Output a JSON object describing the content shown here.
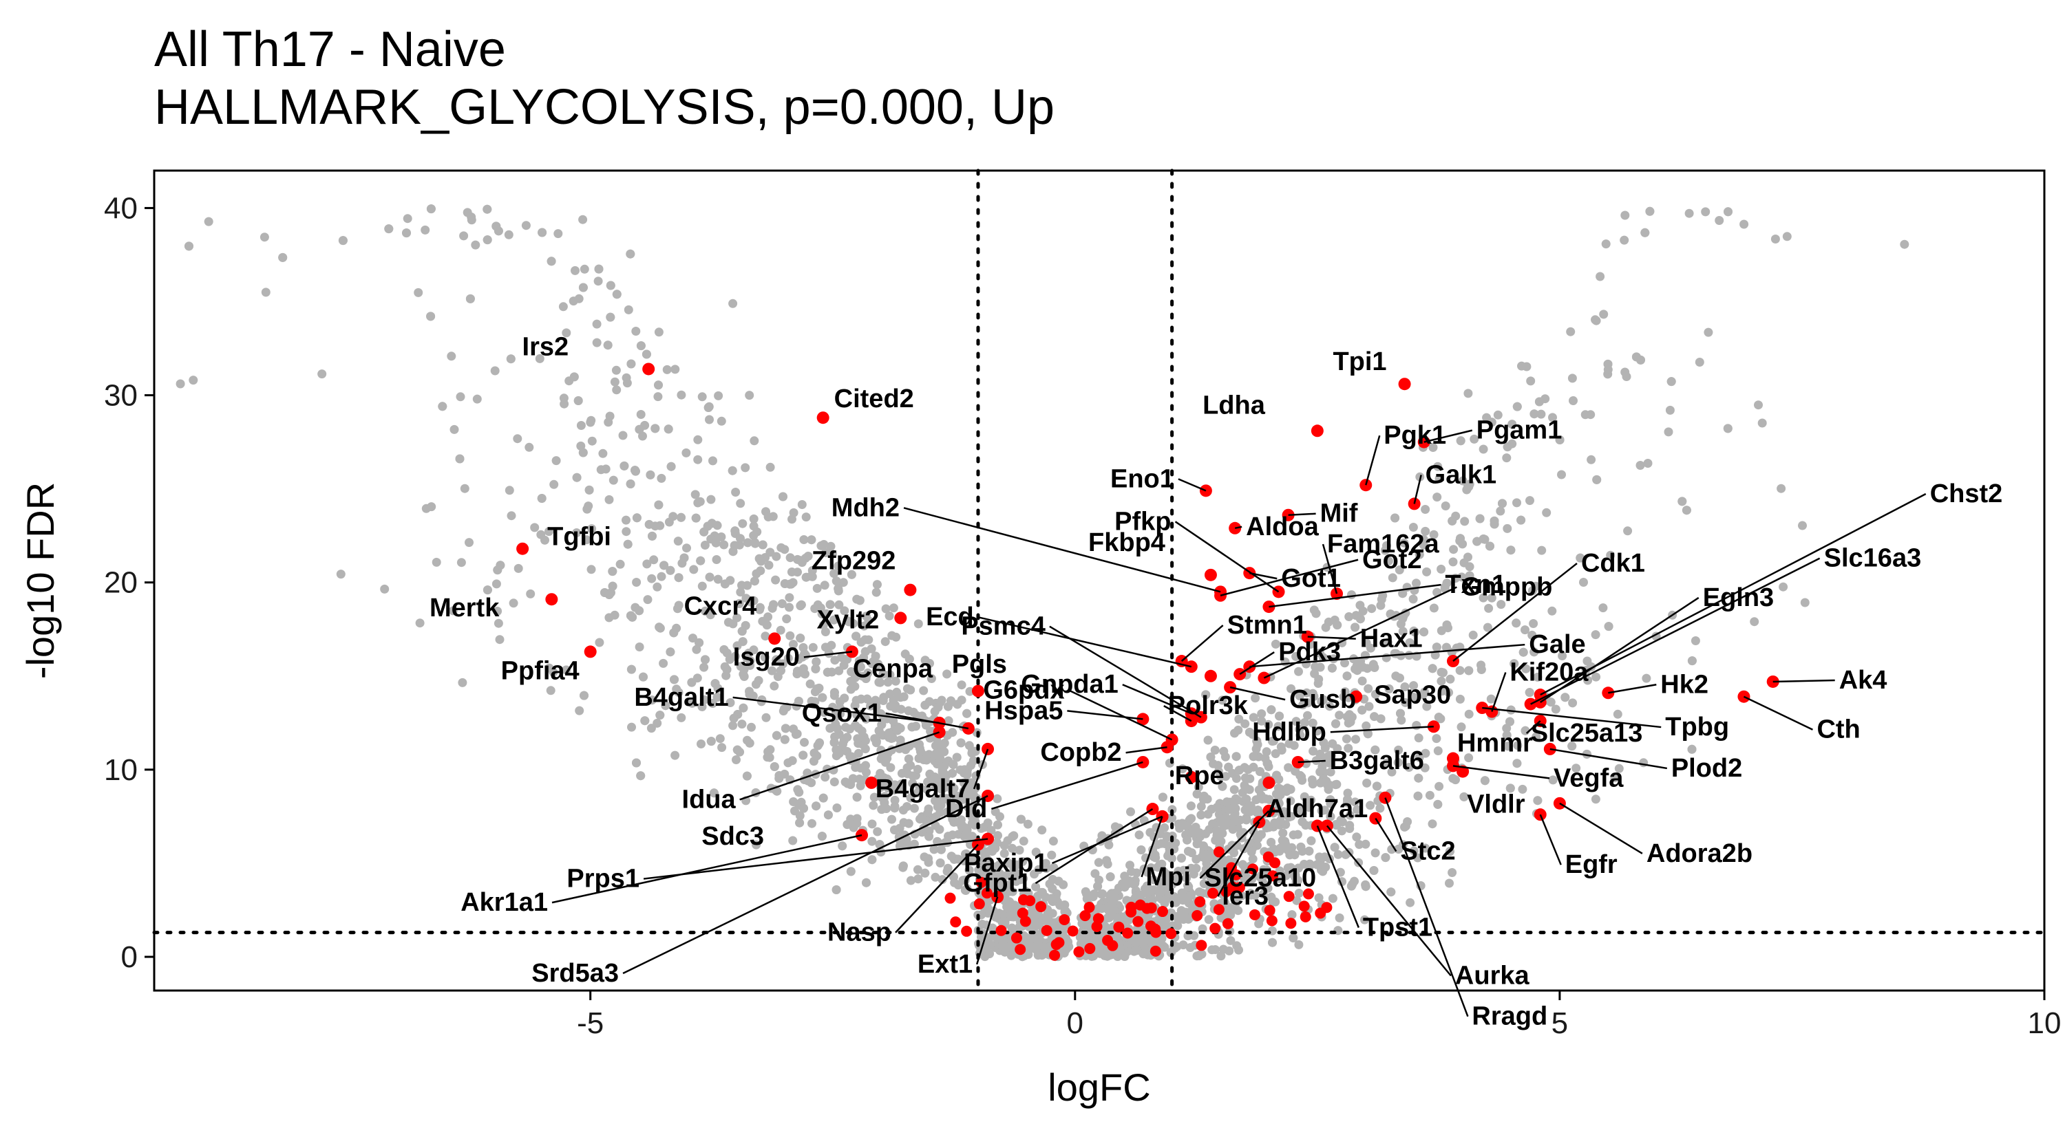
{
  "title": "All Th17 - Naive",
  "subtitle": "HALLMARK_GLYCOLYSIS, p=0.000, Up",
  "chart_data": {
    "type": "scatter",
    "xlabel": "logFC",
    "ylabel": "-log10 FDR",
    "xlim": [
      -9.5,
      10
    ],
    "ylim": [
      -1.8,
      42
    ],
    "xticks": [
      -5,
      0,
      5,
      10
    ],
    "yticks": [
      0,
      10,
      20,
      30,
      40
    ],
    "grid": false,
    "thresholds": {
      "logFC": [
        -1,
        1
      ],
      "neg_log10_fdr": 1.3
    },
    "colors": {
      "background_genes": "#b3b3b3",
      "pathway_genes": "#ff0000",
      "threshold_line": "#000000"
    },
    "background_points": {
      "note": "thousands of grey background genes forming a volcano shape",
      "shown_as": "grey cloud"
    },
    "highlighted_genes": [
      {
        "gene": "Irs2",
        "logFC": -4.4,
        "fdr": 31.4
      },
      {
        "gene": "Cited2",
        "logFC": -2.6,
        "fdr": 28.8
      },
      {
        "gene": "Tgfbi",
        "logFC": -5.7,
        "fdr": 21.8
      },
      {
        "gene": "Mertk",
        "logFC": -5.4,
        "fdr": 19.1
      },
      {
        "gene": "Ppfia4",
        "logFC": -5.0,
        "fdr": 16.3
      },
      {
        "gene": "Cxcr4",
        "logFC": -3.1,
        "fdr": 17.0
      },
      {
        "gene": "Zfp292",
        "logFC": -1.7,
        "fdr": 19.6
      },
      {
        "gene": "Xylt2",
        "logFC": -1.8,
        "fdr": 18.1
      },
      {
        "gene": "Isg20",
        "logFC": -2.3,
        "fdr": 16.3
      },
      {
        "gene": "Mdh2",
        "logFC": 1.5,
        "fdr": 19.5
      },
      {
        "gene": "Ecd",
        "logFC": 1.2,
        "fdr": 15.5
      },
      {
        "gene": "Pgls",
        "logFC": 1.4,
        "fdr": 15.0
      },
      {
        "gene": "Cenpa",
        "logFC": -1.0,
        "fdr": 14.2
      },
      {
        "gene": "Psmc4",
        "logFC": 1.3,
        "fdr": 12.8
      },
      {
        "gene": "G6pdx",
        "logFC": 1.0,
        "fdr": 11.6
      },
      {
        "gene": "Gnpda1",
        "logFC": 1.2,
        "fdr": 13.0
      },
      {
        "gene": "Pfkp",
        "logFC": 2.1,
        "fdr": 19.5
      },
      {
        "gene": "Fkbp4",
        "logFC": 1.4,
        "fdr": 20.4
      },
      {
        "gene": "Stmn1",
        "logFC": 1.1,
        "fdr": 15.8
      },
      {
        "gene": "Hspa5",
        "logFC": 0.7,
        "fdr": 12.7
      },
      {
        "gene": "Eno1",
        "logFC": 1.35,
        "fdr": 24.9
      },
      {
        "gene": "Aldoa",
        "logFC": 1.65,
        "fdr": 22.9
      },
      {
        "gene": "Ldha",
        "logFC": 2.5,
        "fdr": 28.1
      },
      {
        "gene": "Tpi1",
        "logFC": 3.4,
        "fdr": 30.6
      },
      {
        "gene": "Pgk1",
        "logFC": 3.0,
        "fdr": 25.2
      },
      {
        "gene": "Mif",
        "logFC": 2.2,
        "fdr": 23.6
      },
      {
        "gene": "Pgam1",
        "logFC": 3.6,
        "fdr": 27.5
      },
      {
        "gene": "Galk1",
        "logFC": 3.5,
        "fdr": 24.2
      },
      {
        "gene": "Got2",
        "logFC": 1.5,
        "fdr": 19.3
      },
      {
        "gene": "Got1",
        "logFC": 1.8,
        "fdr": 20.5
      },
      {
        "gene": "Txn1",
        "logFC": 2.0,
        "fdr": 18.7
      },
      {
        "gene": "Fam162a",
        "logFC": 2.7,
        "fdr": 19.4
      },
      {
        "gene": "Gale",
        "logFC": 1.8,
        "fdr": 15.5
      },
      {
        "gene": "Pdk3",
        "logFC": 1.7,
        "fdr": 15.1
      },
      {
        "gene": "Hax1",
        "logFC": 2.4,
        "fdr": 17.1
      },
      {
        "gene": "Gmppb",
        "logFC": 1.95,
        "fdr": 14.9
      },
      {
        "gene": "Gusb",
        "logFC": 1.6,
        "fdr": 14.4
      },
      {
        "gene": "Sap30",
        "logFC": 2.9,
        "fdr": 13.9
      },
      {
        "gene": "Cdk1",
        "logFC": 3.9,
        "fdr": 15.8
      },
      {
        "gene": "Kif20a",
        "logFC": 4.3,
        "fdr": 13.1
      },
      {
        "gene": "Egln3",
        "logFC": 4.8,
        "fdr": 13.6
      },
      {
        "gene": "Chst2",
        "logFC": 4.8,
        "fdr": 14.0
      },
      {
        "gene": "Slc16a3",
        "logFC": 4.7,
        "fdr": 13.5
      },
      {
        "gene": "Hk2",
        "logFC": 5.5,
        "fdr": 14.1
      },
      {
        "gene": "Ak4",
        "logFC": 7.2,
        "fdr": 14.7
      },
      {
        "gene": "Cth",
        "logFC": 6.9,
        "fdr": 13.9
      },
      {
        "gene": "Tpbg",
        "logFC": 4.2,
        "fdr": 13.3
      },
      {
        "gene": "Slc25a13",
        "logFC": 4.8,
        "fdr": 12.6
      },
      {
        "gene": "Hdlbp",
        "logFC": 3.7,
        "fdr": 12.3
      },
      {
        "gene": "Hmmr",
        "logFC": 3.9,
        "fdr": 10.6
      },
      {
        "gene": "Plod2",
        "logFC": 4.9,
        "fdr": 11.1
      },
      {
        "gene": "Vegfa",
        "logFC": 3.9,
        "fdr": 10.2
      },
      {
        "gene": "Polr3k",
        "logFC": 1.2,
        "fdr": 12.6
      },
      {
        "gene": "B3galt6",
        "logFC": 2.3,
        "fdr": 10.4
      },
      {
        "gene": "Vldlr",
        "logFC": 4.0,
        "fdr": 9.9
      },
      {
        "gene": "Adora2b",
        "logFC": 5.0,
        "fdr": 8.2
      },
      {
        "gene": "Egfr",
        "logFC": 4.8,
        "fdr": 7.6
      },
      {
        "gene": "Qsox1",
        "logFC": -1.1,
        "fdr": 12.2
      },
      {
        "gene": "B4galt1",
        "logFC": -1.4,
        "fdr": 12.5
      },
      {
        "gene": "Idua",
        "logFC": -1.4,
        "fdr": 12.0
      },
      {
        "gene": "B4galt7",
        "logFC": -0.9,
        "fdr": 11.1
      },
      {
        "gene": "Sdc3",
        "logFC": -2.1,
        "fdr": 9.3
      },
      {
        "gene": "Copb2",
        "logFC": 0.95,
        "fdr": 11.2
      },
      {
        "gene": "Dld",
        "logFC": 0.7,
        "fdr": 10.4
      },
      {
        "gene": "Rpe",
        "logFC": 1.2,
        "fdr": 9.6
      },
      {
        "gene": "Aldh7a1",
        "logFC": 2.0,
        "fdr": 9.3
      },
      {
        "gene": "Prps1",
        "logFC": -0.9,
        "fdr": 6.3
      },
      {
        "gene": "Paxip1",
        "logFC": 0.9,
        "fdr": 7.5
      },
      {
        "gene": "Slc25a10",
        "logFC": 2.0,
        "fdr": 7.8
      },
      {
        "gene": "Stc2",
        "logFC": 3.1,
        "fdr": 7.4
      },
      {
        "gene": "Aurka",
        "logFC": 2.6,
        "fdr": 7.0
      },
      {
        "gene": "Akr1a1",
        "logFC": -2.2,
        "fdr": 6.5
      },
      {
        "gene": "Nasp",
        "logFC": -1.0,
        "fdr": 6.0
      },
      {
        "gene": "Gfpt1",
        "logFC": 0.8,
        "fdr": 7.9
      },
      {
        "gene": "Mpi",
        "logFC": 0.9,
        "fdr": 7.5
      },
      {
        "gene": "Ier3",
        "logFC": 1.9,
        "fdr": 7.2
      },
      {
        "gene": "Tpst1",
        "logFC": 2.5,
        "fdr": 7.0
      },
      {
        "gene": "Rragd",
        "logFC": 3.2,
        "fdr": 8.5
      },
      {
        "gene": "Srd5a3",
        "logFC": -0.9,
        "fdr": 8.6
      },
      {
        "gene": "Ext1",
        "logFC": -0.8,
        "fdr": 3.2
      }
    ],
    "label_positions_note": "labels placed beside points, some with leader lines"
  }
}
